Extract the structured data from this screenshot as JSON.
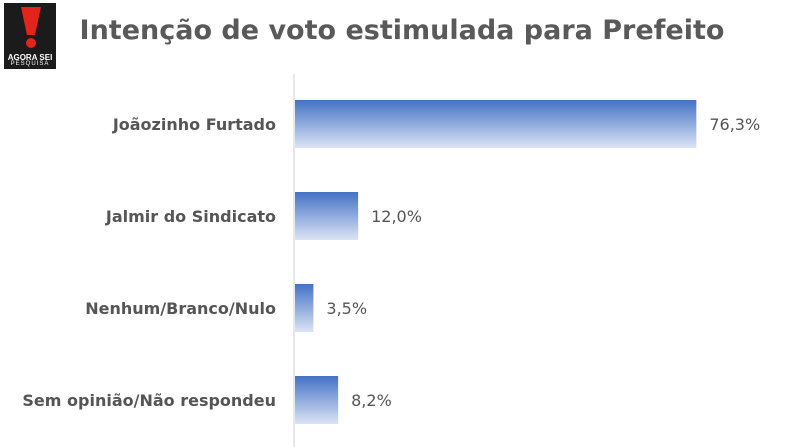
{
  "logo": {
    "line1": "AGORA SEI",
    "line2": "PESQUISA",
    "colors": {
      "background": "#1b1b1b",
      "mark": "#e3241b"
    }
  },
  "chart_data": {
    "type": "bar",
    "orientation": "horizontal",
    "title": "Intenção de voto estimulada para Prefeito",
    "categories": [
      "Joãozinho Furtado",
      "Jalmir do Sindicato",
      "Nenhum/Branco/Nulo",
      "Sem opinião/Não respondeu"
    ],
    "values": [
      76.3,
      12.0,
      3.5,
      8.2
    ],
    "value_labels": [
      "76,3%",
      "12,0%",
      "3,5%",
      "8,2%"
    ],
    "xlim": [
      0,
      100
    ],
    "grid": false,
    "legend": "none",
    "colors": {
      "bar_top": "#4472c4",
      "bar_bottom": "#dce4f4",
      "axis": "#d0d0d0"
    }
  }
}
